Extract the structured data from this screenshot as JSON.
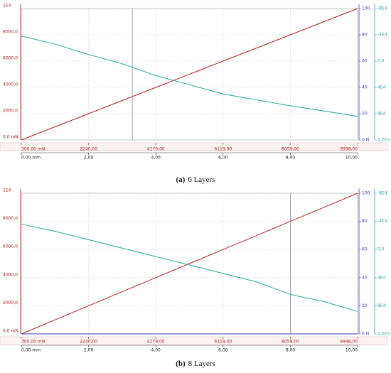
{
  "chart_data": [
    {
      "type": "line",
      "caption_label": "(a)",
      "caption": "6 Layers",
      "x": [
        0,
        1,
        2,
        3,
        4,
        5,
        6,
        7,
        8,
        9,
        10
      ],
      "xlim": [
        0,
        10
      ],
      "xticks": [
        {
          "value": 0,
          "label": "0,00 mm"
        },
        {
          "value": 2,
          "label": "2,00"
        },
        {
          "value": 4,
          "label": "4,00"
        },
        {
          "value": 6,
          "label": "6,00"
        },
        {
          "value": 8,
          "label": "8,00"
        },
        {
          "value": 10,
          "label": "10,00"
        }
      ],
      "x2lim": [
        300,
        9998
      ],
      "x2ticks": [
        {
          "value": 300,
          "label": "300,00 mN"
        },
        {
          "value": 2240,
          "label": "2240,00"
        },
        {
          "value": 4179,
          "label": "4179,00"
        },
        {
          "value": 6119,
          "label": "6119,00"
        },
        {
          "value": 8059,
          "label": "8059,00"
        },
        {
          "value": 9998,
          "label": "9998,00"
        }
      ],
      "ylim": [
        0,
        10000
      ],
      "yticks": [
        {
          "value": 0,
          "label": "0,0 mN"
        },
        {
          "value": 2000,
          "label": "2000,0"
        },
        {
          "value": 4000,
          "label": "4000,0"
        },
        {
          "value": 6000,
          "label": "6000,0"
        },
        {
          "value": 8000,
          "label": "8000,0"
        },
        {
          "value": 10000,
          "label": "1E4"
        }
      ],
      "y2lim": [
        0,
        100
      ],
      "y2ticks": [
        {
          "value": 0,
          "label": "0 N"
        },
        20,
        40,
        60,
        80,
        100
      ],
      "y3lim": [
        120000,
        -80000
      ],
      "y3ticks": [
        {
          "value": 120000,
          "label": "1,2E5 r"
        },
        {
          "value": 80000,
          "label": "8E4"
        },
        {
          "value": 40000,
          "label": "4E4"
        },
        {
          "value": 0,
          "label": "0,0"
        },
        {
          "value": -40000,
          "label": "-4E4"
        },
        {
          "value": -80000,
          "label": "-8E4"
        }
      ],
      "cursor_x": 3.3,
      "grid": true,
      "series": [
        {
          "color": "#b22222",
          "values": [
            0,
            1000,
            2000,
            3000,
            4000,
            5000,
            6000,
            7000,
            8000,
            9000,
            10000
          ]
        },
        {
          "color": "#2aa5a5",
          "values": [
            7900,
            7300,
            6500,
            5800,
            4900,
            4200,
            3500,
            3050,
            2600,
            2200,
            1800
          ]
        }
      ]
    },
    {
      "type": "line",
      "caption_label": "(b)",
      "caption": "8 Layers",
      "x": [
        0,
        1,
        2,
        3,
        4,
        5,
        6,
        7,
        8,
        9,
        10
      ],
      "xlim": [
        0,
        10
      ],
      "xticks": [
        {
          "value": 0,
          "label": "0,00 mm"
        },
        {
          "value": 2,
          "label": "2,00"
        },
        {
          "value": 4,
          "label": "4,00"
        },
        {
          "value": 6,
          "label": "6,00"
        },
        {
          "value": 8,
          "label": "8,00"
        },
        {
          "value": 10,
          "label": "10,00"
        }
      ],
      "x2lim": [
        300,
        9998
      ],
      "x2ticks": [
        {
          "value": 300,
          "label": "300,00 mN"
        },
        {
          "value": 2240,
          "label": "2240,00"
        },
        {
          "value": 4179,
          "label": "4179,00"
        },
        {
          "value": 6119,
          "label": "6119,00"
        },
        {
          "value": 8059,
          "label": "8059,00"
        },
        {
          "value": 9998,
          "label": "9998,00"
        }
      ],
      "ylim": [
        0,
        10000
      ],
      "yticks": [
        {
          "value": 0,
          "label": "0,0 mN"
        },
        {
          "value": 2000,
          "label": "2000,0"
        },
        {
          "value": 4000,
          "label": "4000,0"
        },
        {
          "value": 6000,
          "label": "6000,0"
        },
        {
          "value": 8000,
          "label": "8000,0"
        },
        {
          "value": 10000,
          "label": "1E4"
        }
      ],
      "y2lim": [
        0,
        100
      ],
      "y2ticks": [
        {
          "value": 0,
          "label": "0 N"
        },
        20,
        40,
        60,
        80,
        100
      ],
      "y3lim": [
        120000,
        -80000
      ],
      "y3ticks": [
        {
          "value": 120000,
          "label": "1,2E5"
        },
        {
          "value": 80000,
          "label": "8E4"
        },
        {
          "value": 40000,
          "label": "4E4"
        },
        {
          "value": 0,
          "label": "0,0"
        },
        {
          "value": -40000,
          "label": "-4E4"
        },
        {
          "value": -80000,
          "label": "-8E4"
        }
      ],
      "cursor_x": 8,
      "grid": true,
      "series": [
        {
          "color": "#b22222",
          "values": [
            0,
            1000,
            2000,
            3000,
            4000,
            5000,
            6000,
            7000,
            8000,
            9000,
            10000
          ]
        },
        {
          "color": "#2aa5a5",
          "values": [
            7800,
            7300,
            6700,
            6100,
            5500,
            4900,
            4300,
            3700,
            2800,
            2300,
            1600
          ]
        },
        {
          "color": "#3b3bb0",
          "axis": "y2",
          "values": [
            0,
            0,
            0,
            0,
            0,
            0,
            0,
            0,
            0,
            0,
            0
          ]
        }
      ]
    }
  ]
}
